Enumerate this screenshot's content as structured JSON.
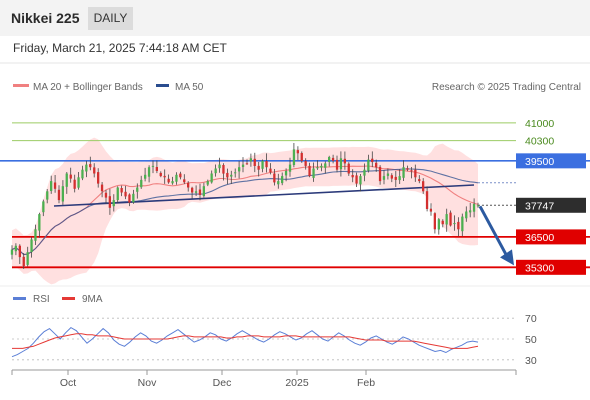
{
  "header": {
    "title": "Nikkei 225",
    "timeframe": "DAILY",
    "datetime": "Friday, March 21, 2025 7:44:18 AM CET"
  },
  "legend": {
    "ma20_label": "MA 20 + Bollinger Bands",
    "ma50_label": "MA 50",
    "credit": "Research © 2025 Trading Central"
  },
  "rsi_legend": {
    "rsi_label": "RSI",
    "ma_label": "9MA"
  },
  "colors": {
    "ma20": "#f08080",
    "ma50": "#2a4d8f",
    "bollinger": "#ffd6d6",
    "support": "#e00000",
    "resistance": "#3b6fe0",
    "target": "#9ccc65",
    "candle_up": "#4caf50",
    "candle_down": "#d32f2f",
    "trendline": "#2b3a7a",
    "arrow": "#2c5aa0",
    "rsi": "#5b7fd6",
    "rsi_ma": "#e53935"
  },
  "chart_data": [
    {
      "type": "candlestick",
      "title": "Nikkei 225",
      "timeframe": "DAILY",
      "ylim": [
        34800,
        41900
      ],
      "x_ticks": [
        "Oct",
        "Nov",
        "Dec",
        "2025",
        "Feb"
      ],
      "last_price": 37747,
      "levels": [
        {
          "label": "41000",
          "value": 41000,
          "kind": "target"
        },
        {
          "label": "40300",
          "value": 40300,
          "kind": "target"
        },
        {
          "label": "39500",
          "value": 39500,
          "kind": "resistance"
        },
        {
          "label": "37747",
          "value": 37747,
          "kind": "last"
        },
        {
          "label": "36500",
          "value": 36500,
          "kind": "support"
        },
        {
          "label": "35300",
          "value": 35300,
          "kind": "support"
        }
      ],
      "indicators": [
        "MA 20 + Bollinger Bands",
        "MA 50"
      ],
      "closes_approx": [
        36000,
        36150,
        35700,
        35350,
        35900,
        36400,
        36800,
        37400,
        37900,
        38300,
        38700,
        38400,
        37950,
        38500,
        39000,
        38800,
        38400,
        38850,
        39150,
        39350,
        39250,
        39000,
        38600,
        38300,
        38050,
        37650,
        37950,
        38450,
        38250,
        38100,
        37850,
        38200,
        38450,
        38750,
        38950,
        39250,
        39300,
        39100,
        38900,
        38850,
        38650,
        38700,
        38950,
        38850,
        38650,
        38450,
        38250,
        38300,
        38150,
        38500,
        38700,
        39000,
        39200,
        39350,
        39000,
        38850,
        38950,
        39050,
        39250,
        39350,
        39400,
        39600,
        39300,
        39150,
        39500,
        39250,
        39050,
        38650,
        38700,
        38900,
        39100,
        39350,
        39950,
        39800,
        39500,
        39300,
        38900,
        39200,
        39250,
        39300,
        39400,
        39650,
        39500,
        39150,
        39600,
        39400,
        39000,
        38850,
        38600,
        38900,
        39150,
        39550,
        39450,
        39250,
        38700,
        38900,
        39000,
        38800,
        38750,
        38900,
        39250,
        39150,
        39100,
        38850,
        38700,
        38300,
        37600,
        37500,
        36800,
        37200,
        37000,
        37400,
        36950,
        37050,
        36800,
        37300,
        37500,
        37550,
        37800,
        37747
      ]
    },
    {
      "type": "line",
      "title": "RSI",
      "series": [
        {
          "name": "RSI"
        },
        {
          "name": "9MA"
        }
      ],
      "ylim": [
        25,
        75
      ],
      "y_ticks": [
        30,
        50,
        70
      ],
      "rsi_approx": [
        33,
        35,
        38,
        41,
        46,
        52,
        57,
        60,
        55,
        50,
        56,
        61,
        58,
        52,
        46,
        50,
        55,
        60,
        56,
        49,
        45,
        43,
        47,
        52,
        56,
        53,
        48,
        46,
        49,
        53,
        56,
        59,
        55,
        51,
        47,
        49,
        52,
        56,
        54,
        50,
        48,
        51,
        55,
        58,
        55,
        52,
        49,
        47,
        50,
        54,
        57,
        55,
        52,
        49,
        51,
        55,
        58,
        54,
        50,
        48,
        52,
        56,
        53,
        49,
        46,
        44,
        47,
        51,
        53,
        50,
        47,
        45,
        48,
        52,
        50,
        47,
        44,
        42,
        40,
        38,
        39,
        37,
        40,
        42,
        44,
        47,
        48,
        47
      ],
      "rsi_ma_approx": [
        41,
        41,
        41,
        42,
        43,
        45,
        47,
        49,
        51,
        52,
        53,
        54,
        55,
        55,
        54,
        54,
        53,
        53,
        53,
        52,
        51,
        50,
        50,
        50,
        50,
        50,
        50,
        50,
        50,
        50,
        51,
        52,
        53,
        53,
        52,
        52,
        52,
        52,
        52,
        52,
        51,
        51,
        52,
        52,
        53,
        53,
        53,
        52,
        52,
        52,
        52,
        53,
        53,
        53,
        52,
        52,
        52,
        52,
        52,
        52,
        52,
        52,
        52,
        52,
        51,
        50,
        49,
        49,
        49,
        49,
        48,
        48,
        48,
        48,
        48,
        48,
        47,
        46,
        45,
        44,
        43,
        42,
        41,
        41,
        41,
        41,
        42,
        43
      ]
    }
  ]
}
